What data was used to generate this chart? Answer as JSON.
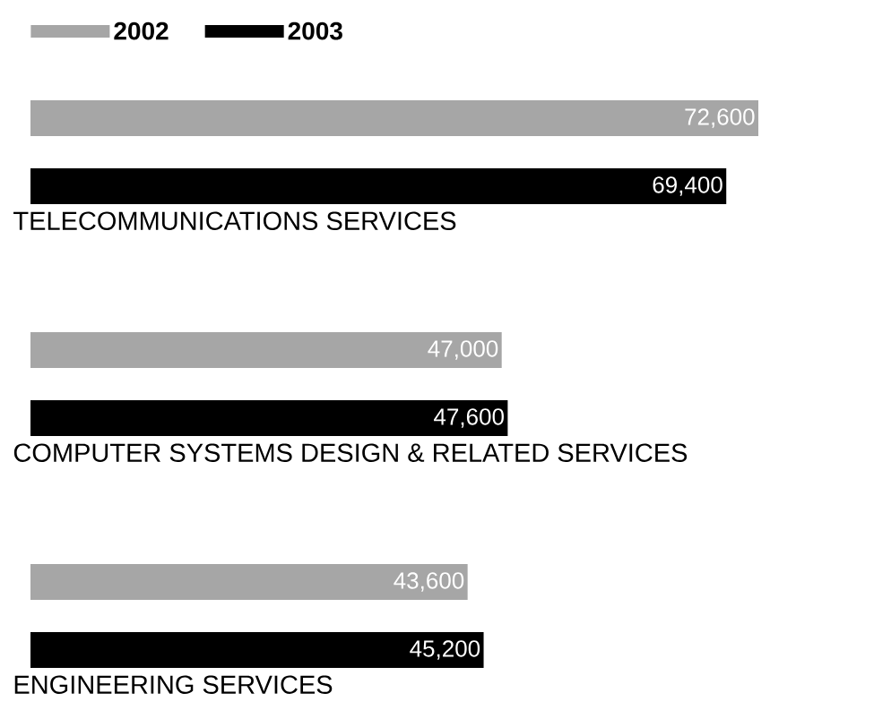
{
  "chart_data": {
    "type": "bar",
    "orientation": "horizontal",
    "categories": [
      "TELECOMMUNICATIONS SERVICES",
      "COMPUTER SYSTEMS DESIGN & RELATED SERVICES",
      "ENGINEERING SERVICES"
    ],
    "series": [
      {
        "name": "2002",
        "color": "#a6a6a6",
        "values": [
          72600,
          47000,
          43600
        ],
        "value_labels": [
          "72,600",
          "47,000",
          "43,600"
        ]
      },
      {
        "name": "2003",
        "color": "#000000",
        "values": [
          69400,
          47600,
          45200
        ],
        "value_labels": [
          "69,400",
          "47,600",
          "45,200"
        ]
      }
    ],
    "legend": "top left"
  }
}
